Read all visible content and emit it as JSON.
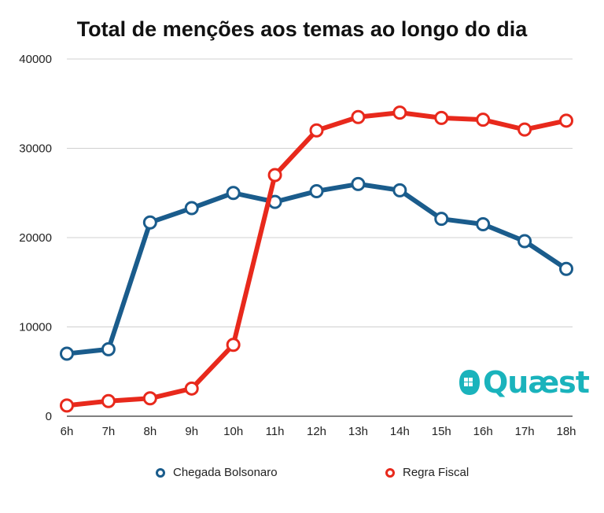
{
  "chart_data": {
    "type": "line",
    "title": "Total de menções aos temas ao longo do dia",
    "categories": [
      "6h",
      "7h",
      "8h",
      "9h",
      "10h",
      "11h",
      "12h",
      "13h",
      "14h",
      "15h",
      "16h",
      "17h",
      "18h"
    ],
    "ylim": [
      0,
      40000
    ],
    "yticks": [
      0,
      10000,
      20000,
      30000,
      40000
    ],
    "ytick_labels": [
      "0",
      "10000",
      "20000",
      "30000",
      "40000"
    ],
    "grid": true,
    "legend_position": "bottom",
    "series": [
      {
        "name": "Chegada Bolsonaro",
        "color": "#1a5c8c",
        "values": [
          7000,
          7500,
          21700,
          23300,
          25000,
          24000,
          25200,
          26000,
          25300,
          22100,
          21500,
          19600,
          16500
        ]
      },
      {
        "name": "Regra Fiscal",
        "color": "#e8291c",
        "values": [
          1200,
          1700,
          2000,
          3100,
          8000,
          27000,
          32000,
          33500,
          34000,
          33400,
          33200,
          32100,
          33100
        ]
      }
    ]
  },
  "logo": {
    "text": "Quæst",
    "color": "#1ab3bc"
  }
}
